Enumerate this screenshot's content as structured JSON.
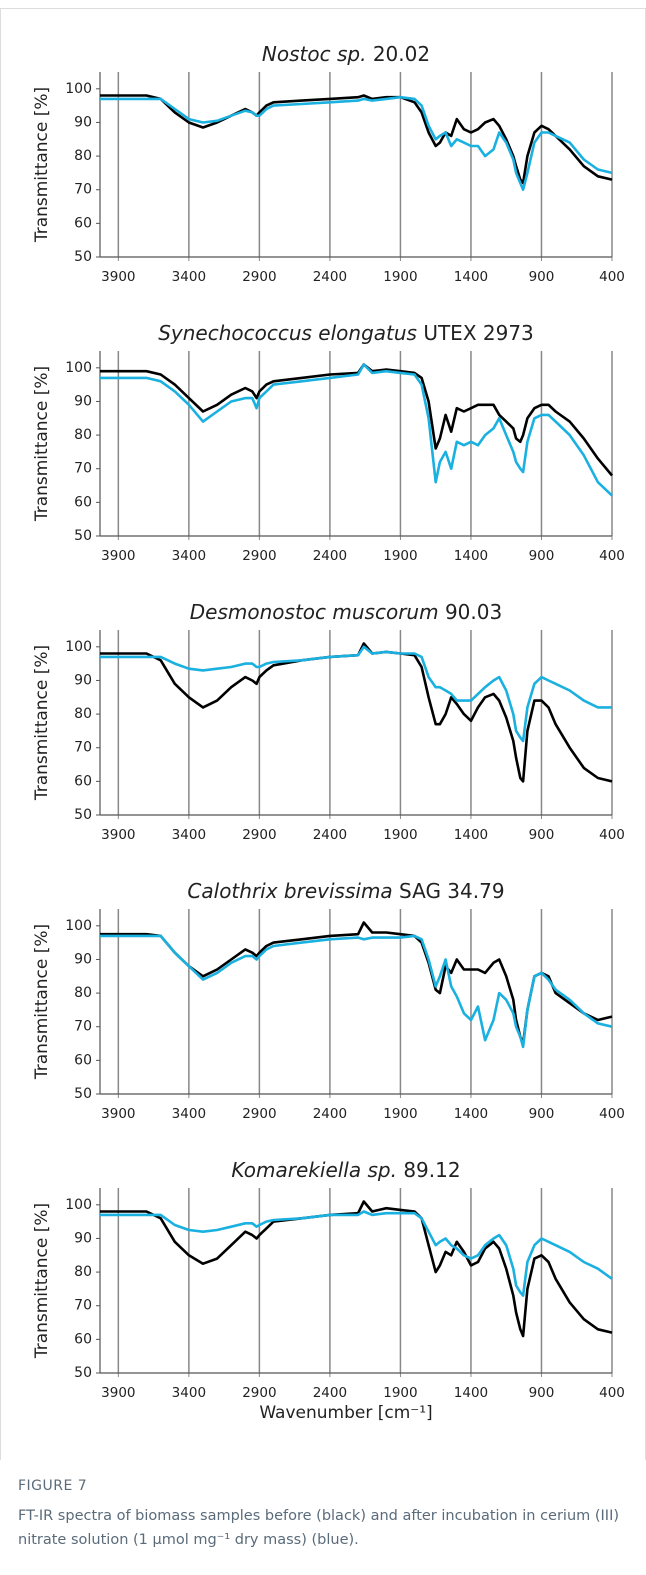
{
  "chart_data": [
    {
      "type": "line",
      "title": {
        "italic": "Nostoc sp.",
        "text": "20.02"
      },
      "ylabel": "Transmittance [%]",
      "x": [
        4030,
        3900,
        3700,
        3600,
        3500,
        3400,
        3300,
        3200,
        3100,
        3000,
        2950,
        2920,
        2900,
        2850,
        2800,
        2600,
        2400,
        2200,
        2160,
        2100,
        2000,
        1900,
        1800,
        1750,
        1700,
        1650,
        1620,
        1580,
        1540,
        1500,
        1450,
        1400,
        1350,
        1300,
        1240,
        1200,
        1150,
        1100,
        1080,
        1050,
        1030,
        1000,
        950,
        900,
        850,
        800,
        700,
        600,
        500,
        400
      ],
      "series": [
        {
          "color": "#000000",
          "values": [
            98,
            98,
            98,
            97,
            93,
            90,
            88.5,
            90,
            92,
            94,
            93,
            92,
            93,
            95,
            96,
            96.5,
            97,
            97.5,
            98,
            97,
            97.5,
            97.5,
            96,
            93,
            87,
            83,
            84,
            87,
            86,
            91,
            88,
            87,
            88,
            90,
            91,
            89,
            85,
            80,
            77,
            73,
            72,
            80,
            87,
            89,
            88,
            86,
            82,
            77,
            74,
            73
          ]
        },
        {
          "color": "#1ab0e0",
          "values": [
            97,
            97,
            97,
            97,
            94,
            91,
            90,
            90.5,
            92,
            93.5,
            93,
            92,
            92,
            94,
            95,
            95.5,
            96,
            96.5,
            97,
            96.5,
            97,
            97.5,
            97,
            95,
            89,
            85,
            86,
            87,
            83,
            85,
            84,
            83,
            83,
            80,
            82,
            87,
            84,
            79,
            75,
            72,
            70,
            75,
            84,
            87,
            87,
            86,
            84,
            79,
            76,
            75
          ]
        }
      ],
      "xlim": [
        4030,
        400
      ],
      "xticks": [
        3900,
        3400,
        2900,
        2400,
        1900,
        1400,
        900,
        400
      ],
      "ylim": [
        50,
        105
      ],
      "yticks": [
        50,
        60,
        70,
        80,
        90,
        100
      ],
      "grid": "x"
    },
    {
      "type": "line",
      "title": {
        "italic": "Synechococcus elongatus",
        "text": "UTEX 2973"
      },
      "ylabel": "Transmittance [%]",
      "x": [
        4030,
        3900,
        3700,
        3600,
        3500,
        3400,
        3300,
        3200,
        3100,
        3000,
        2950,
        2920,
        2900,
        2850,
        2800,
        2600,
        2400,
        2200,
        2160,
        2100,
        2000,
        1900,
        1800,
        1750,
        1700,
        1650,
        1620,
        1580,
        1540,
        1500,
        1450,
        1400,
        1350,
        1300,
        1240,
        1200,
        1150,
        1100,
        1080,
        1050,
        1030,
        1000,
        950,
        900,
        850,
        800,
        700,
        600,
        500,
        400
      ],
      "series": [
        {
          "color": "#000000",
          "values": [
            99,
            99,
            99,
            98,
            95,
            91,
            87,
            89,
            92,
            94,
            93,
            91,
            93,
            95,
            96,
            97,
            98,
            98.5,
            101,
            99,
            99.5,
            99,
            98.5,
            97,
            90,
            76,
            79,
            86,
            81,
            88,
            87,
            88,
            89,
            89,
            89,
            86,
            84,
            82,
            79,
            78,
            80,
            85,
            88,
            89,
            89,
            87,
            84,
            79,
            73,
            68
          ]
        },
        {
          "color": "#1ab0e0",
          "values": [
            97,
            97,
            97,
            96,
            93,
            89,
            84,
            87,
            90,
            91,
            91,
            88,
            91,
            93,
            95,
            96,
            97,
            98,
            101,
            98.5,
            99,
            98.5,
            98,
            95,
            85,
            66,
            72,
            75,
            70,
            78,
            77,
            78,
            77,
            80,
            82,
            85,
            80,
            75,
            72,
            70,
            69,
            78,
            85,
            86,
            86,
            84,
            80,
            74,
            66,
            62
          ]
        }
      ],
      "xlim": [
        4030,
        400
      ],
      "xticks": [
        3900,
        3400,
        2900,
        2400,
        1900,
        1400,
        900,
        400
      ],
      "ylim": [
        50,
        105
      ],
      "yticks": [
        50,
        60,
        70,
        80,
        90,
        100
      ],
      "grid": "x"
    },
    {
      "type": "line",
      "title": {
        "italic": "Desmonostoc muscorum",
        "text": "90.03"
      },
      "ylabel": "Transmittance [%]",
      "x": [
        4030,
        3900,
        3700,
        3600,
        3500,
        3400,
        3300,
        3200,
        3100,
        3000,
        2950,
        2920,
        2900,
        2850,
        2800,
        2600,
        2400,
        2200,
        2160,
        2100,
        2000,
        1900,
        1800,
        1750,
        1700,
        1650,
        1620,
        1580,
        1540,
        1500,
        1450,
        1400,
        1350,
        1300,
        1240,
        1200,
        1150,
        1100,
        1080,
        1050,
        1030,
        1000,
        950,
        900,
        850,
        800,
        700,
        600,
        500,
        400
      ],
      "series": [
        {
          "color": "#000000",
          "values": [
            98,
            98,
            98,
            96,
            89,
            85,
            82,
            84,
            88,
            91,
            90,
            89,
            91,
            93,
            94.5,
            96,
            97,
            97.5,
            101,
            98,
            98.5,
            98,
            97.5,
            94,
            85,
            77,
            77,
            80,
            85,
            83,
            80,
            78,
            82,
            85,
            86,
            84,
            79,
            72,
            67,
            61,
            60,
            75,
            84,
            84,
            82,
            77,
            70,
            64,
            61,
            60
          ]
        },
        {
          "color": "#1ab0e0",
          "values": [
            97,
            97,
            97,
            97,
            95,
            93.5,
            93,
            93.5,
            94,
            95,
            95,
            94,
            94,
            95,
            95.5,
            96,
            97,
            97.5,
            100,
            98,
            98.5,
            98,
            98,
            97,
            91,
            88,
            88,
            87,
            86,
            84,
            84,
            84,
            86,
            88,
            90,
            91,
            87,
            80,
            75,
            73,
            72,
            82,
            89,
            91,
            90,
            89,
            87,
            84,
            82,
            82
          ]
        }
      ],
      "xlim": [
        4030,
        400
      ],
      "xticks": [
        3900,
        3400,
        2900,
        2400,
        1900,
        1400,
        900,
        400
      ],
      "ylim": [
        50,
        105
      ],
      "yticks": [
        50,
        60,
        70,
        80,
        90,
        100
      ],
      "grid": "x"
    },
    {
      "type": "line",
      "title": {
        "italic": "Calothrix brevissima",
        "text": "SAG 34.79"
      },
      "ylabel": "Transmittance [%]",
      "x": [
        4030,
        3900,
        3700,
        3600,
        3500,
        3400,
        3300,
        3200,
        3100,
        3000,
        2950,
        2920,
        2900,
        2850,
        2800,
        2600,
        2400,
        2200,
        2160,
        2100,
        2000,
        1900,
        1800,
        1750,
        1700,
        1650,
        1620,
        1580,
        1540,
        1500,
        1450,
        1400,
        1350,
        1300,
        1240,
        1200,
        1150,
        1100,
        1080,
        1050,
        1030,
        1000,
        950,
        900,
        850,
        800,
        700,
        600,
        500,
        400
      ],
      "series": [
        {
          "color": "#000000",
          "values": [
            97.5,
            97.5,
            97.5,
            97,
            92,
            88,
            85,
            87,
            90,
            93,
            92,
            91,
            92,
            94,
            95,
            96,
            97,
            97.5,
            101,
            98,
            98,
            97.5,
            97,
            95,
            89,
            81,
            80,
            88,
            86,
            90,
            87,
            87,
            87,
            86,
            89,
            90,
            85,
            78,
            72,
            67,
            65,
            75,
            85,
            86,
            85,
            80,
            77,
            74,
            72,
            73
          ]
        },
        {
          "color": "#1ab0e0",
          "values": [
            97,
            97,
            97,
            97,
            92,
            88,
            84,
            86,
            89,
            91,
            91,
            90,
            91,
            93,
            94,
            95,
            96,
            96.5,
            96,
            96.5,
            96.5,
            96.5,
            97,
            96,
            90,
            82,
            85,
            90,
            82,
            79,
            74,
            72,
            76,
            66,
            72,
            80,
            78,
            74,
            70,
            67,
            64,
            75,
            85,
            86,
            84,
            81,
            78,
            74,
            71,
            70
          ]
        }
      ],
      "xlim": [
        4030,
        400
      ],
      "xticks": [
        3900,
        3400,
        2900,
        2400,
        1900,
        1400,
        900,
        400
      ],
      "ylim": [
        50,
        105
      ],
      "yticks": [
        50,
        60,
        70,
        80,
        90,
        100
      ],
      "grid": "x"
    },
    {
      "type": "line",
      "title": {
        "italic": "Komarekiella sp.",
        "text": "89.12"
      },
      "ylabel": "Transmittance [%]",
      "xlabel": "Wavenumber [cm⁻¹]",
      "x": [
        4030,
        3900,
        3700,
        3600,
        3500,
        3400,
        3300,
        3200,
        3100,
        3000,
        2950,
        2920,
        2900,
        2850,
        2800,
        2600,
        2400,
        2200,
        2160,
        2100,
        2000,
        1900,
        1800,
        1750,
        1700,
        1650,
        1620,
        1580,
        1540,
        1500,
        1450,
        1400,
        1350,
        1300,
        1240,
        1200,
        1150,
        1100,
        1080,
        1050,
        1030,
        1000,
        950,
        900,
        850,
        800,
        700,
        600,
        500,
        400
      ],
      "series": [
        {
          "color": "#000000",
          "values": [
            98,
            98,
            98,
            96,
            89,
            85,
            82.5,
            84,
            88,
            92,
            91,
            90,
            91,
            93,
            95,
            96,
            97,
            97.5,
            101,
            98,
            99,
            98.5,
            98,
            96,
            88,
            80,
            82,
            86,
            85,
            89,
            86,
            82,
            83,
            87,
            89,
            87,
            81,
            73,
            68,
            63,
            61,
            75,
            84,
            85,
            83,
            78,
            71,
            66,
            63,
            62
          ]
        },
        {
          "color": "#1ab0e0",
          "values": [
            97,
            97,
            97,
            97,
            94,
            92.5,
            92,
            92.5,
            93.5,
            94.5,
            94.5,
            93.5,
            94,
            95,
            95.5,
            96,
            97,
            97,
            98,
            97,
            97.5,
            97.5,
            97.5,
            96,
            92,
            88,
            89,
            90,
            88,
            87,
            85,
            84,
            85,
            88,
            90,
            91,
            88,
            81,
            76,
            74,
            73,
            83,
            88,
            90,
            89,
            88,
            86,
            83,
            81,
            78
          ]
        }
      ],
      "xlim": [
        4030,
        400
      ],
      "xticks": [
        3900,
        3400,
        2900,
        2400,
        1900,
        1400,
        900,
        400
      ],
      "ylim": [
        50,
        105
      ],
      "yticks": [
        50,
        60,
        70,
        80,
        90,
        100
      ],
      "grid": "x"
    }
  ],
  "caption": {
    "label": "FIGURE 7",
    "text": "FT-IR spectra of biomass samples before (black) and after incubation in cerium (III) nitrate solution (1 µmol mg⁻¹ dry mass) (blue)."
  }
}
